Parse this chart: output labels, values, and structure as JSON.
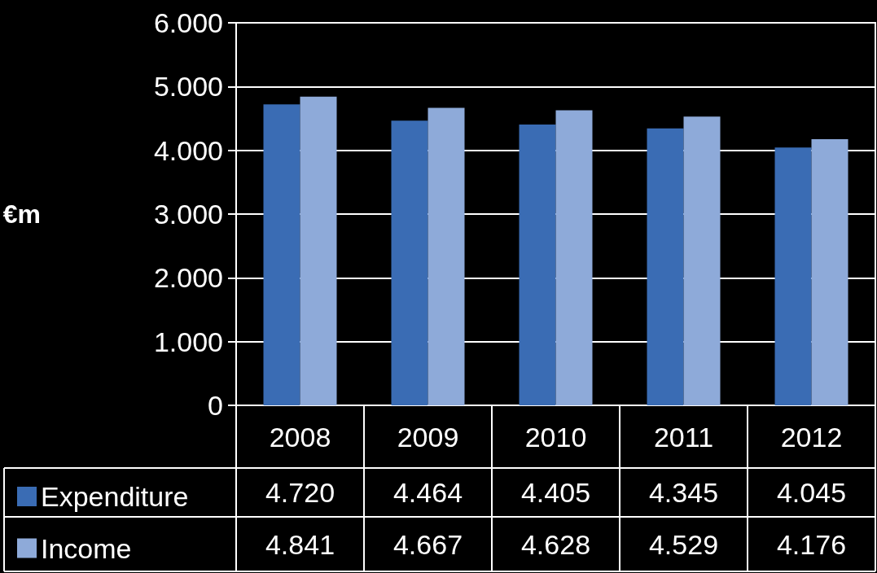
{
  "chart_data": {
    "type": "bar",
    "ylabel": "€m",
    "categories": [
      "2008",
      "2009",
      "2010",
      "2011",
      "2012"
    ],
    "series": [
      {
        "name": "Expenditure",
        "color": "#3a6cb4",
        "values": [
          4720,
          4464,
          4405,
          4345,
          4045
        ],
        "value_labels": [
          "4.720",
          "4.464",
          "4.405",
          "4.345",
          "4.045"
        ]
      },
      {
        "name": "Income",
        "color": "#8eaad9",
        "values": [
          4841,
          4667,
          4628,
          4529,
          4176
        ],
        "value_labels": [
          "4.841",
          "4.667",
          "4.628",
          "4.529",
          "4.176"
        ]
      }
    ],
    "ylim": [
      0,
      6000
    ],
    "yticks": [
      {
        "value": 0,
        "label": "0"
      },
      {
        "value": 1000,
        "label": "1.000"
      },
      {
        "value": 2000,
        "label": "2.000"
      },
      {
        "value": 3000,
        "label": "3.000"
      },
      {
        "value": 4000,
        "label": "4.000"
      },
      {
        "value": 5000,
        "label": "5.000"
      },
      {
        "value": 6000,
        "label": "6.000"
      }
    ],
    "grid": "y",
    "legend": "bottom left"
  }
}
